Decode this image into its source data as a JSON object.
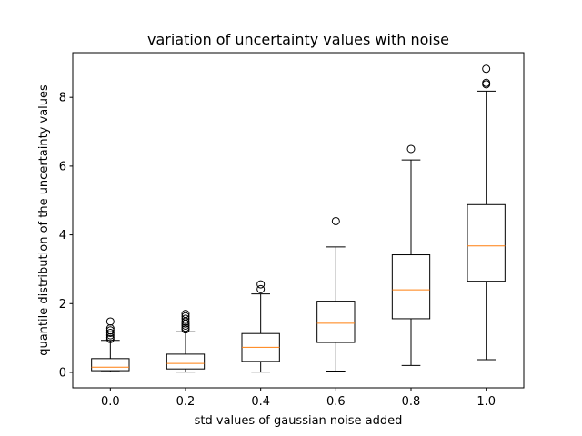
{
  "chart_data": {
    "type": "box",
    "title": "variation of uncertainty values with noise",
    "xlabel": "std values of gaussian noise added",
    "ylabel": "quantile distribution of the uncertainty values",
    "xlim": [
      -0.5,
      5.5
    ],
    "ylim": [
      -0.45,
      9.3
    ],
    "yticks": [
      0,
      2,
      4,
      6,
      8
    ],
    "grid": false,
    "categories": [
      "0.0",
      "0.2",
      "0.4",
      "0.6",
      "0.8",
      "1.0"
    ],
    "boxes": [
      {
        "label": "0.0",
        "whisker_low": 0.02,
        "q1": 0.05,
        "median": 0.15,
        "q3": 0.4,
        "whisker_high": 0.93,
        "outliers": [
          0.97,
          1.02,
          1.08,
          1.15,
          1.22,
          1.28,
          1.48
        ]
      },
      {
        "label": "0.2",
        "whisker_low": 0.01,
        "q1": 0.1,
        "median": 0.26,
        "q3": 0.53,
        "whisker_high": 1.18,
        "outliers": [
          1.25,
          1.3,
          1.36,
          1.42,
          1.48,
          1.56,
          1.63,
          1.7
        ]
      },
      {
        "label": "0.4",
        "whisker_low": 0.01,
        "q1": 0.32,
        "median": 0.73,
        "q3": 1.13,
        "whisker_high": 2.28,
        "outliers": [
          2.42,
          2.56
        ]
      },
      {
        "label": "0.6",
        "whisker_low": 0.04,
        "q1": 0.87,
        "median": 1.43,
        "q3": 2.07,
        "whisker_high": 3.65,
        "outliers": [
          4.4
        ]
      },
      {
        "label": "0.8",
        "whisker_low": 0.2,
        "q1": 1.56,
        "median": 2.4,
        "q3": 3.42,
        "whisker_high": 6.18,
        "outliers": [
          6.5
        ]
      },
      {
        "label": "1.0",
        "whisker_low": 0.37,
        "q1": 2.65,
        "median": 3.68,
        "q3": 4.88,
        "whisker_high": 8.18,
        "outliers": [
          8.38,
          8.42,
          8.83
        ]
      }
    ],
    "colors": {
      "box": "#000000",
      "median": "#ff7f0e",
      "outlier_edge": "#000000",
      "background": "#ffffff"
    }
  }
}
